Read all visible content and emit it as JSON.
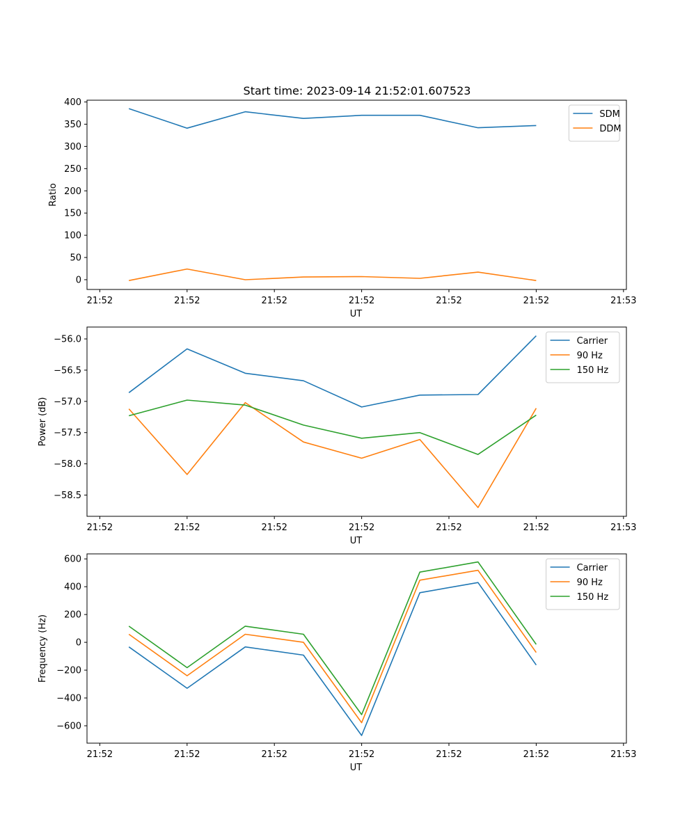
{
  "title": "Start time: 2023-09-14 21:52:01.607523",
  "colors": {
    "blue": "#1f77b4",
    "orange": "#ff7f0e",
    "green": "#2ca02c"
  },
  "chart_data": [
    {
      "type": "line",
      "xlabel": "UT",
      "ylabel": "Ratio",
      "x": [
        1,
        2,
        3,
        4,
        5,
        6,
        7,
        8
      ],
      "xlim": [
        0.28,
        9.55
      ],
      "xtick_positions": [
        0.5,
        2,
        3.5,
        5,
        6.5,
        8,
        9.5
      ],
      "xtick_labels": [
        "21:52",
        "21:52",
        "21:52",
        "21:52",
        "21:52",
        "21:52",
        "21:53"
      ],
      "ylim": [
        -22,
        404
      ],
      "yticks": [
        0,
        50,
        100,
        150,
        200,
        250,
        300,
        350,
        400
      ],
      "legend": "top-right",
      "series": [
        {
          "name": "SDM",
          "color": "#1f77b4",
          "values": [
            385,
            341,
            378,
            363,
            370,
            370,
            342,
            347
          ]
        },
        {
          "name": "DDM",
          "color": "#ff7f0e",
          "values": [
            -2,
            24,
            0,
            6,
            7,
            3,
            17,
            -2
          ]
        }
      ]
    },
    {
      "type": "line",
      "xlabel": "UT",
      "ylabel": "Power (dB)",
      "x": [
        1,
        2,
        3,
        4,
        5,
        6,
        7,
        8
      ],
      "xlim": [
        0.28,
        9.55
      ],
      "xtick_positions": [
        0.5,
        2,
        3.5,
        5,
        6.5,
        8,
        9.5
      ],
      "xtick_labels": [
        "21:52",
        "21:52",
        "21:52",
        "21:52",
        "21:52",
        "21:52",
        "21:53"
      ],
      "ylim": [
        -58.84,
        -55.81
      ],
      "yticks": [
        -58.5,
        -58.0,
        -57.5,
        -57.0,
        -56.5,
        -56.0
      ],
      "ytick_labels": [
        "−58.5",
        "−58.0",
        "−57.5",
        "−57.0",
        "−56.5",
        "−56.0"
      ],
      "legend": "top-right",
      "series": [
        {
          "name": "Carrier",
          "color": "#1f77b4",
          "values": [
            -56.86,
            -56.16,
            -56.55,
            -56.67,
            -57.09,
            -56.9,
            -56.89,
            -55.95
          ]
        },
        {
          "name": "90 Hz",
          "color": "#ff7f0e",
          "values": [
            -57.12,
            -58.17,
            -57.02,
            -57.65,
            -57.91,
            -57.61,
            -58.7,
            -57.11
          ]
        },
        {
          "name": "150 Hz",
          "color": "#2ca02c",
          "values": [
            -57.23,
            -56.98,
            -57.06,
            -57.38,
            -57.59,
            -57.5,
            -57.85,
            -57.22
          ]
        }
      ]
    },
    {
      "type": "line",
      "xlabel": "UT",
      "ylabel": "Frequency (Hz)",
      "x": [
        1,
        2,
        3,
        4,
        5,
        6,
        7,
        8
      ],
      "xlim": [
        0.28,
        9.55
      ],
      "xtick_positions": [
        0.5,
        2,
        3.5,
        5,
        6.5,
        8,
        9.5
      ],
      "xtick_labels": [
        "21:52",
        "21:52",
        "21:52",
        "21:52",
        "21:52",
        "21:52",
        "21:53"
      ],
      "ylim": [
        -725,
        636
      ],
      "yticks": [
        -600,
        -400,
        -200,
        0,
        200,
        400,
        600
      ],
      "ytick_labels": [
        "−600",
        "−400",
        "−200",
        "0",
        "200",
        "400",
        "600"
      ],
      "legend": "top-right",
      "series": [
        {
          "name": "Carrier",
          "color": "#1f77b4",
          "values": [
            -33,
            -330,
            -33,
            -92,
            -670,
            357,
            430,
            -163
          ]
        },
        {
          "name": "90 Hz",
          "color": "#ff7f0e",
          "values": [
            58,
            -240,
            58,
            0,
            -578,
            447,
            518,
            -73
          ]
        },
        {
          "name": "150 Hz",
          "color": "#2ca02c",
          "values": [
            116,
            -182,
            116,
            58,
            -520,
            505,
            578,
            -15
          ]
        }
      ]
    }
  ]
}
